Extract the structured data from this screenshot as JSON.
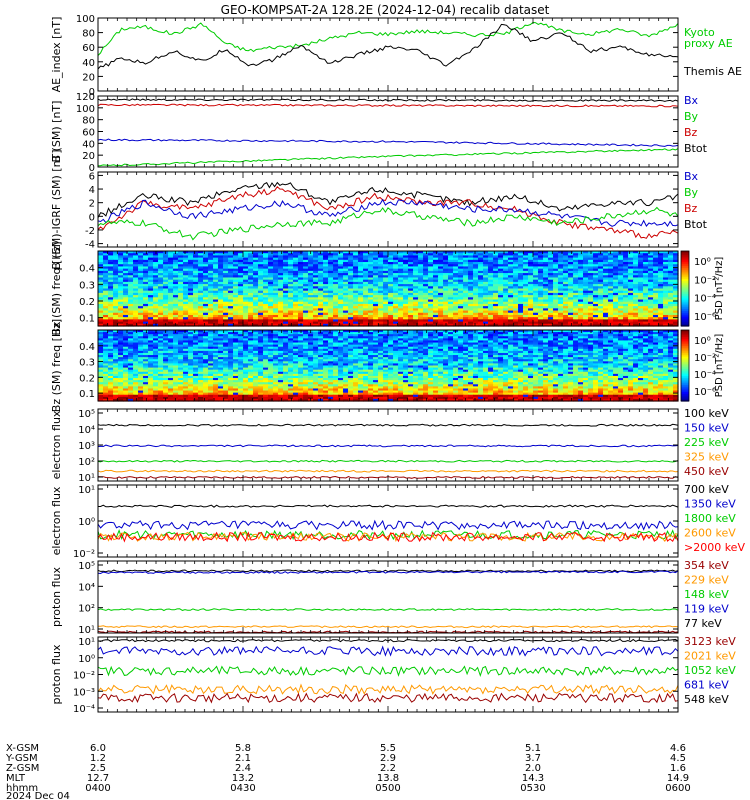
{
  "title": "GEO-KOMPSAT-2A 128.2E (2024-12-04) recalib dataset",
  "chart_data": [
    {
      "type": "line",
      "ylabel": "AE_index [nT]",
      "yticks": [
        "0",
        "20",
        "40",
        "60",
        "80",
        "100"
      ],
      "ylim": [
        0,
        100
      ],
      "scale": "linear",
      "legend": [
        {
          "text": "Kyoto",
          "color": "#00cc00"
        },
        {
          "text": "proxy AE",
          "color": "#00cc00"
        },
        {
          "text": "Themis AE",
          "color": "#000000"
        }
      ],
      "series": [
        {
          "name": "Kyoto proxy AE",
          "color": "#00cc00",
          "x": [
            0,
            0.04,
            0.08,
            0.13,
            0.18,
            0.22,
            0.26,
            0.3,
            0.35,
            0.4,
            0.45,
            0.5,
            0.55,
            0.6,
            0.65,
            0.7,
            0.75,
            0.8,
            0.85,
            0.9,
            0.95,
            1.0
          ],
          "values": [
            50,
            85,
            88,
            78,
            92,
            65,
            55,
            60,
            62,
            72,
            80,
            78,
            82,
            80,
            77,
            78,
            95,
            82,
            78,
            85,
            75,
            92
          ]
        },
        {
          "name": "Themis AE",
          "color": "#000000",
          "x": [
            0,
            0.04,
            0.08,
            0.13,
            0.18,
            0.22,
            0.26,
            0.3,
            0.35,
            0.4,
            0.45,
            0.5,
            0.55,
            0.6,
            0.65,
            0.7,
            0.75,
            0.8,
            0.85,
            0.9,
            0.95,
            1.0
          ],
          "values": [
            30,
            45,
            38,
            55,
            40,
            58,
            35,
            42,
            62,
            38,
            50,
            60,
            55,
            35,
            58,
            92,
            68,
            80,
            55,
            60,
            50,
            45
          ]
        }
      ]
    },
    {
      "type": "line",
      "ylabel": "B (SM) [nT]",
      "yticks": [
        "0",
        "20",
        "40",
        "60",
        "80",
        "100",
        "120"
      ],
      "ylim": [
        0,
        120
      ],
      "scale": "linear",
      "legend": [
        {
          "text": "Bx",
          "color": "#0000cc"
        },
        {
          "text": "By",
          "color": "#00cc00"
        },
        {
          "text": "Bz",
          "color": "#cc0000"
        },
        {
          "text": "Btot",
          "color": "#000000"
        }
      ],
      "series": [
        {
          "name": "Btot",
          "color": "#000000",
          "x": [
            0,
            0.5,
            1.0
          ],
          "values": [
            114,
            113,
            112
          ]
        },
        {
          "name": "Bz",
          "color": "#cc0000",
          "x": [
            0,
            0.5,
            1.0
          ],
          "values": [
            105,
            104,
            103
          ]
        },
        {
          "name": "Bx",
          "color": "#0000cc",
          "x": [
            0,
            0.5,
            1.0
          ],
          "values": [
            46,
            43,
            36
          ]
        },
        {
          "name": "By",
          "color": "#00cc00",
          "x": [
            0,
            0.5,
            1.0
          ],
          "values": [
            2,
            18,
            30
          ]
        }
      ]
    },
    {
      "type": "line",
      "ylabel": "B (SM)-IGRF (SM) [nT]",
      "yticks": [
        "-4",
        "-2",
        "0",
        "2",
        "4",
        "6"
      ],
      "ylim": [
        -4.5,
        6.5
      ],
      "scale": "linear",
      "legend": [
        {
          "text": "Bx",
          "color": "#0000cc"
        },
        {
          "text": "By",
          "color": "#00cc00"
        },
        {
          "text": "Bz",
          "color": "#cc0000"
        },
        {
          "text": "Btot",
          "color": "#000000"
        }
      ],
      "series": [
        {
          "name": "Btot",
          "color": "#000000",
          "x": [
            0,
            0.08,
            0.16,
            0.24,
            0.32,
            0.4,
            0.48,
            0.56,
            0.64,
            0.72,
            0.8,
            0.88,
            0.96,
            1.0
          ],
          "values": [
            0,
            3,
            2,
            4,
            5,
            2,
            4,
            3,
            2,
            3,
            1,
            2,
            2,
            3
          ]
        },
        {
          "name": "Bz",
          "color": "#cc0000",
          "x": [
            0,
            0.08,
            0.16,
            0.24,
            0.32,
            0.4,
            0.48,
            0.56,
            0.64,
            0.72,
            0.8,
            0.88,
            0.96,
            1.0
          ],
          "values": [
            -2,
            2,
            1,
            3,
            4,
            1,
            3,
            2,
            2,
            1,
            -1,
            -2,
            -3,
            -2
          ]
        },
        {
          "name": "Bx",
          "color": "#0000cc",
          "x": [
            0,
            0.08,
            0.16,
            0.24,
            0.32,
            0.4,
            0.48,
            0.56,
            0.64,
            0.72,
            0.8,
            0.88,
            0.96,
            1.0
          ],
          "values": [
            -1,
            2,
            0,
            1,
            2,
            0,
            2,
            2,
            1,
            1,
            0,
            -1,
            -1,
            -1
          ]
        },
        {
          "name": "By",
          "color": "#00cc00",
          "x": [
            0,
            0.08,
            0.16,
            0.24,
            0.32,
            0.4,
            0.48,
            0.56,
            0.64,
            0.72,
            0.8,
            0.88,
            0.96,
            1.0
          ],
          "values": [
            -1,
            -1,
            -3,
            -2,
            -1,
            -1,
            1,
            0,
            -1,
            0,
            -1,
            0,
            1,
            0
          ]
        }
      ]
    },
    {
      "type": "heatmap",
      "ylabel": "Bx (SM) freq [Hz]",
      "yticks": [
        "0.1",
        "0.2",
        "0.3",
        "0.4"
      ],
      "ylim": [
        0.05,
        0.5
      ],
      "scale": "linear",
      "colorbar": {
        "label": "PSD [nT²/Hz]",
        "ticks": [
          "10⁰",
          "10⁻²",
          "10⁻⁴",
          "10⁻⁶"
        ]
      }
    },
    {
      "type": "heatmap",
      "ylabel": "Bz (SM) freq [Hz]",
      "yticks": [
        "0.1",
        "0.2",
        "0.3",
        "0.4"
      ],
      "ylim": [
        0.05,
        0.5
      ],
      "scale": "linear",
      "colorbar": {
        "label": "PSD [nT²/Hz]",
        "ticks": [
          "10⁰",
          "10⁻²",
          "10⁻⁴",
          "10⁻⁶"
        ]
      }
    },
    {
      "type": "line",
      "ylabel": "electron flux",
      "yticks": [
        "10¹",
        "10²",
        "10³",
        "10⁴",
        "10⁵"
      ],
      "ylim": [
        1,
        5
      ],
      "scale": "log",
      "legend": [
        {
          "text": "100 keV",
          "color": "#000000"
        },
        {
          "text": "150 keV",
          "color": "#0000cc"
        },
        {
          "text": "225 keV",
          "color": "#00cc00"
        },
        {
          "text": "325 keV",
          "color": "#ff9900"
        },
        {
          "text": "450 keV",
          "color": "#990000"
        }
      ],
      "series": [
        {
          "name": "100 keV",
          "color": "#000000",
          "x": [
            0,
            1
          ],
          "values": [
            4.1,
            4.1
          ]
        },
        {
          "name": "150 keV",
          "color": "#0000cc",
          "x": [
            0,
            1
          ],
          "values": [
            2.95,
            2.95
          ]
        },
        {
          "name": "225 keV",
          "color": "#00cc00",
          "x": [
            0,
            1
          ],
          "values": [
            2.1,
            2.1
          ]
        },
        {
          "name": "325 keV",
          "color": "#ff9900",
          "x": [
            0,
            1
          ],
          "values": [
            1.55,
            1.55
          ]
        },
        {
          "name": "450 keV",
          "color": "#990000",
          "x": [
            0,
            1
          ],
          "values": [
            1.2,
            1.2
          ]
        }
      ]
    },
    {
      "type": "line",
      "ylabel": "electron flux",
      "yticks": [
        "10⁻²",
        "10⁰",
        "10¹"
      ],
      "ylim": [
        -2.4,
        1
      ],
      "scale": "log",
      "legend": [
        {
          "text": "700 keV",
          "color": "#000000"
        },
        {
          "text": "1350 keV",
          "color": "#0000cc"
        },
        {
          "text": "1800 keV",
          "color": "#00cc00"
        },
        {
          "text": "2600 keV",
          "color": "#ff9900"
        },
        {
          "text": ">2000 keV",
          "color": "#ff0000"
        }
      ],
      "series": [
        {
          "name": "700 keV",
          "color": "#000000",
          "x": [
            0,
            1
          ],
          "values": [
            0,
            0
          ]
        },
        {
          "name": "1350 keV",
          "color": "#0000cc",
          "x": [
            0,
            1
          ],
          "values": [
            -0.9,
            -0.9
          ]
        },
        {
          "name": "1800 keV",
          "color": "#00cc00",
          "x": [
            0,
            1
          ],
          "values": [
            -1.35,
            -1.35
          ]
        },
        {
          "name": "2600 keV",
          "color": "#ff9900",
          "x": [
            0,
            1
          ],
          "values": [
            -1.45,
            -1.45
          ]
        },
        {
          "name": ">2000 keV",
          "color": "#ff0000",
          "x": [
            0,
            1
          ],
          "values": [
            -1.45,
            -1.45
          ]
        }
      ]
    },
    {
      "type": "line",
      "ylabel": "proton flux",
      "yticks": [
        "10¹",
        "10²",
        "10⁴",
        "10⁵"
      ],
      "ylim": [
        1,
        5
      ],
      "scale": "log",
      "legend": [
        {
          "text": "354 keV",
          "color": "#990000"
        },
        {
          "text": "229 keV",
          "color": "#ff9900"
        },
        {
          "text": "148 keV",
          "color": "#00cc00"
        },
        {
          "text": "119 keV",
          "color": "#0000cc"
        },
        {
          "text": "77 keV",
          "color": "#000000"
        }
      ],
      "series": [
        {
          "name": "77 keV",
          "color": "#000000",
          "x": [
            0,
            1
          ],
          "values": [
            4.45,
            4.45
          ]
        },
        {
          "name": "119 keV",
          "color": "#0000cc",
          "x": [
            0,
            1
          ],
          "values": [
            4.35,
            4.4
          ]
        },
        {
          "name": "148 keV",
          "color": "#00cc00",
          "x": [
            0,
            1
          ],
          "values": [
            2.3,
            2.3
          ]
        },
        {
          "name": "229 keV",
          "color": "#ff9900",
          "x": [
            0,
            1
          ],
          "values": [
            1.35,
            1.35
          ]
        },
        {
          "name": "354 keV",
          "color": "#990000",
          "x": [
            0,
            1
          ],
          "values": [
            1.05,
            1.05
          ]
        }
      ]
    },
    {
      "type": "line",
      "ylabel": "proton flux",
      "yticks": [
        "10⁻⁴",
        "10⁻³",
        "10⁻²",
        "10⁰",
        "10¹"
      ],
      "ylim": [
        -4.3,
        1
      ],
      "scale": "log",
      "legend": [
        {
          "text": "3123 keV",
          "color": "#990000"
        },
        {
          "text": "2021 keV",
          "color": "#ff9900"
        },
        {
          "text": "1052 keV",
          "color": "#00cc00"
        },
        {
          "text": "681 keV",
          "color": "#0000cc"
        },
        {
          "text": "548 keV",
          "color": "#000000"
        }
      ],
      "series": [
        {
          "name": "548 keV",
          "color": "#000000",
          "x": [
            0,
            1
          ],
          "values": [
            0.75,
            0.75
          ]
        },
        {
          "name": "681 keV",
          "color": "#0000cc",
          "x": [
            0,
            1
          ],
          "values": [
            0,
            0
          ]
        },
        {
          "name": "1052 keV",
          "color": "#00cc00",
          "x": [
            0,
            1
          ],
          "values": [
            -1.4,
            -1.4
          ]
        },
        {
          "name": "2021 keV",
          "color": "#ff9900",
          "x": [
            0,
            1
          ],
          "values": [
            -2.7,
            -2.7
          ]
        },
        {
          "name": "3123 keV",
          "color": "#990000",
          "x": [
            0,
            1
          ],
          "values": [
            -3.3,
            -3.3
          ]
        }
      ]
    }
  ],
  "x_axis": {
    "row_labels": [
      "X-GSM",
      "Y-GSM",
      "Z-GSM",
      "MLT",
      "hhmm"
    ],
    "columns": [
      {
        "values": [
          "6.0",
          "1.2",
          "2.5",
          "12.7",
          "0400"
        ]
      },
      {
        "values": [
          "5.8",
          "2.1",
          "2.4",
          "13.2",
          "0430"
        ]
      },
      {
        "values": [
          "5.5",
          "2.9",
          "2.2",
          "13.8",
          "0500"
        ]
      },
      {
        "values": [
          "5.1",
          "3.7",
          "2.0",
          "14.3",
          "0530"
        ]
      },
      {
        "values": [
          "4.6",
          "4.5",
          "1.6",
          "14.9",
          "0600"
        ]
      }
    ],
    "date": "2024 Dec 04"
  }
}
